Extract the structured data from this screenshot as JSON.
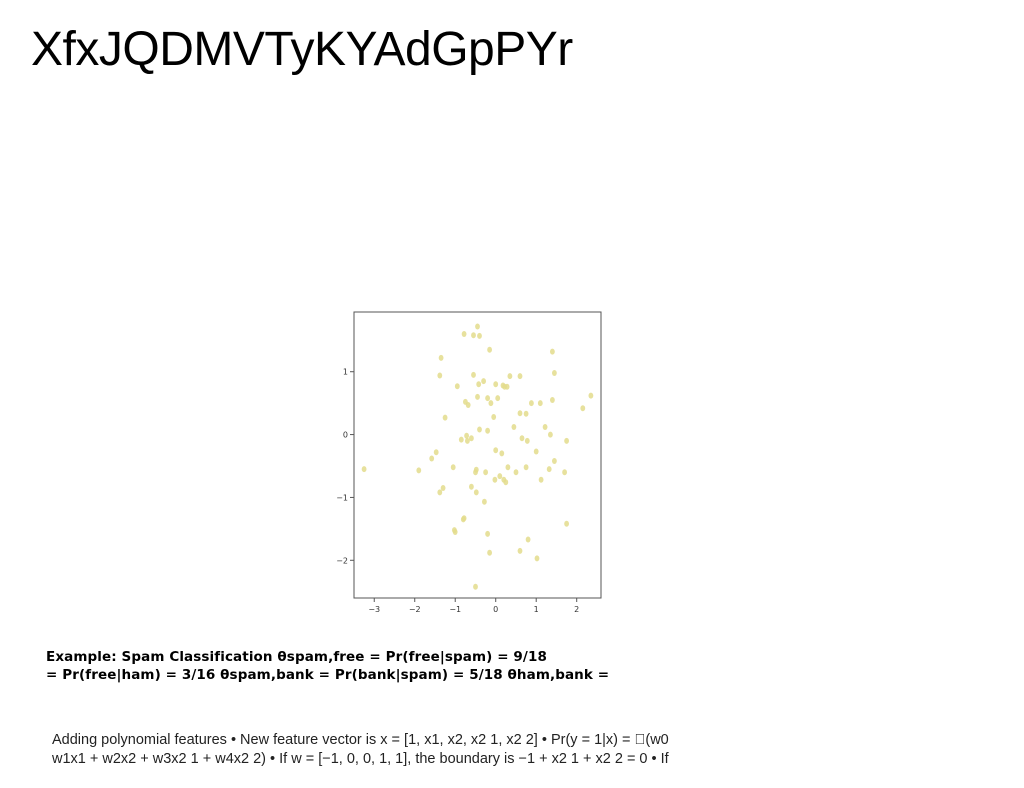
{
  "slide": {
    "title": "XfxJQDMVTyKYAdGpPYr"
  },
  "spam_text": {
    "line1": "Example: Spam Classification θspam,free = Pr(free|spam) = 9/18",
    "line2": "= Pr(free|ham) = 3/16 θspam,bank = Pr(bank|spam) = 5/18 θham,bank ="
  },
  "poly_text": {
    "line1": "Adding polynomial features • New feature vector is x = [1, x1, x2, x2 1, x2 2] • Pr(y = 1|x) = \u0000(w0",
    "line2": "w1x1 + w2x2 + w3x2 1 + w4x2 2) • If w = [−1, 0, 0, 1, 1], the boundary is −1 + x2 1 + x2 2 = 0 • If"
  },
  "chart_data": {
    "type": "scatter",
    "xlim": [
      -3.5,
      2.6
    ],
    "ylim": [
      -2.6,
      1.95
    ],
    "xticks": [
      -3,
      -2,
      -1,
      0,
      1,
      2
    ],
    "yticks": [
      -2,
      -1,
      0,
      1
    ],
    "xtick_labels": [
      "−3",
      "−2",
      "−1",
      "0",
      "1",
      "2"
    ],
    "ytick_labels": [
      "−2",
      "−1",
      "0",
      "1"
    ],
    "grid": false,
    "point_color": "#e3dc8c",
    "points": [
      [
        -0.45,
        1.72
      ],
      [
        -0.78,
        1.6
      ],
      [
        -0.55,
        1.58
      ],
      [
        -0.4,
        1.57
      ],
      [
        -0.15,
        1.35
      ],
      [
        1.4,
        1.32
      ],
      [
        -1.35,
        1.22
      ],
      [
        1.45,
        0.98
      ],
      [
        -0.55,
        0.95
      ],
      [
        -1.38,
        0.94
      ],
      [
        0.35,
        0.93
      ],
      [
        0.6,
        0.93
      ],
      [
        -0.3,
        0.85
      ],
      [
        -0.42,
        0.8
      ],
      [
        0.0,
        0.8
      ],
      [
        0.18,
        0.78
      ],
      [
        0.28,
        0.76
      ],
      [
        -0.95,
        0.77
      ],
      [
        0.22,
        0.76
      ],
      [
        -0.45,
        0.6
      ],
      [
        2.35,
        0.62
      ],
      [
        0.05,
        0.58
      ],
      [
        -0.2,
        0.58
      ],
      [
        1.4,
        0.55
      ],
      [
        -0.75,
        0.52
      ],
      [
        -0.12,
        0.5
      ],
      [
        0.88,
        0.5
      ],
      [
        1.1,
        0.5
      ],
      [
        -0.68,
        0.47
      ],
      [
        2.15,
        0.42
      ],
      [
        0.6,
        0.34
      ],
      [
        0.75,
        0.33
      ],
      [
        -0.05,
        0.28
      ],
      [
        -1.25,
        0.27
      ],
      [
        1.22,
        0.12
      ],
      [
        0.45,
        0.12
      ],
      [
        -0.4,
        0.08
      ],
      [
        -0.2,
        0.06
      ],
      [
        1.35,
        0.0
      ],
      [
        -0.72,
        -0.02
      ],
      [
        -0.6,
        -0.06
      ],
      [
        -0.85,
        -0.08
      ],
      [
        0.65,
        -0.06
      ],
      [
        -0.7,
        -0.1
      ],
      [
        0.78,
        -0.1
      ],
      [
        1.75,
        -0.1
      ],
      [
        -1.47,
        -0.28
      ],
      [
        0.0,
        -0.25
      ],
      [
        0.15,
        -0.3
      ],
      [
        1.0,
        -0.27
      ],
      [
        -1.58,
        -0.38
      ],
      [
        1.45,
        -0.42
      ],
      [
        -1.05,
        -0.52
      ],
      [
        0.3,
        -0.52
      ],
      [
        -3.25,
        -0.55
      ],
      [
        -1.9,
        -0.57
      ],
      [
        -0.48,
        -0.56
      ],
      [
        0.75,
        -0.52
      ],
      [
        1.32,
        -0.55
      ],
      [
        -0.25,
        -0.6
      ],
      [
        -0.5,
        -0.6
      ],
      [
        0.5,
        -0.6
      ],
      [
        1.7,
        -0.6
      ],
      [
        0.1,
        -0.66
      ],
      [
        0.2,
        -0.72
      ],
      [
        -0.02,
        -0.72
      ],
      [
        1.12,
        -0.72
      ],
      [
        0.25,
        -0.76
      ],
      [
        -0.6,
        -0.83
      ],
      [
        -1.3,
        -0.85
      ],
      [
        -1.38,
        -0.92
      ],
      [
        -0.48,
        -0.92
      ],
      [
        -0.28,
        -1.07
      ],
      [
        -1.02,
        -1.52
      ],
      [
        -1.0,
        -1.55
      ],
      [
        -0.78,
        -1.33
      ],
      [
        -0.8,
        -1.35
      ],
      [
        1.75,
        -1.42
      ],
      [
        -0.2,
        -1.58
      ],
      [
        0.8,
        -1.67
      ],
      [
        0.6,
        -1.85
      ],
      [
        -0.15,
        -1.88
      ],
      [
        1.02,
        -1.97
      ],
      [
        -0.5,
        -2.42
      ]
    ]
  }
}
